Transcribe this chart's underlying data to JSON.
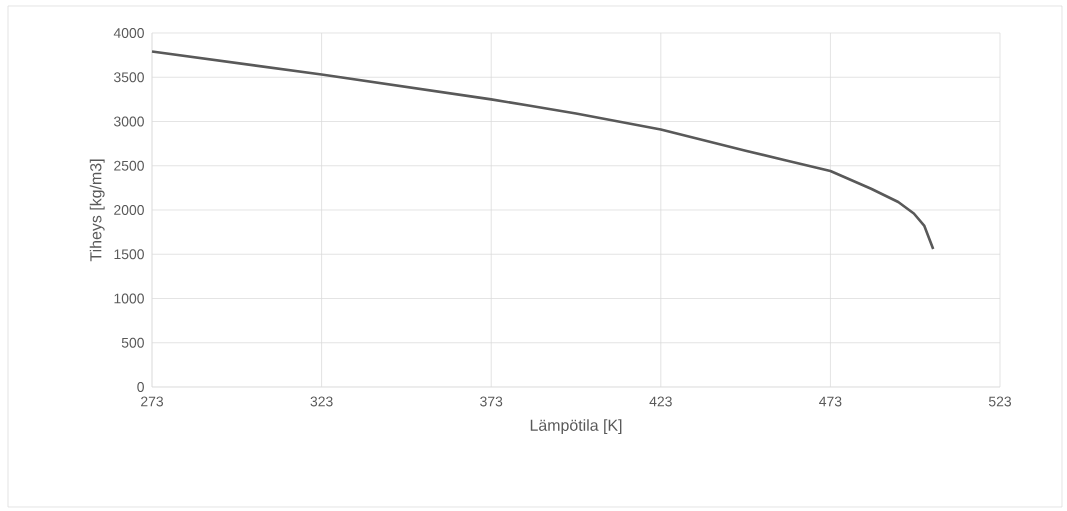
{
  "chart_data": {
    "type": "line",
    "xlabel": "Lämpötila [K]",
    "ylabel": "Tiheys [kg/m3]",
    "x": [
      273,
      323,
      373,
      384,
      398,
      423,
      448,
      460,
      473,
      485,
      493,
      497.6,
      500.7,
      503.3
    ],
    "series": [
      {
        "color": "#595959",
        "values": [
          3790,
          3530,
          3250,
          3180,
          3090,
          2910,
          2670,
          2560,
          2440,
          2240,
          2090,
          1960,
          1820,
          1560
        ]
      }
    ],
    "xlim": [
      273,
      523
    ],
    "xticks": [
      273,
      323,
      373,
      423,
      473,
      523
    ],
    "ylim": [
      0,
      4000
    ],
    "yticks": [
      0,
      500,
      1000,
      1500,
      2000,
      2500,
      3000,
      3500,
      4000
    ],
    "grid": true,
    "marker": "none",
    "line_style": "solid"
  }
}
